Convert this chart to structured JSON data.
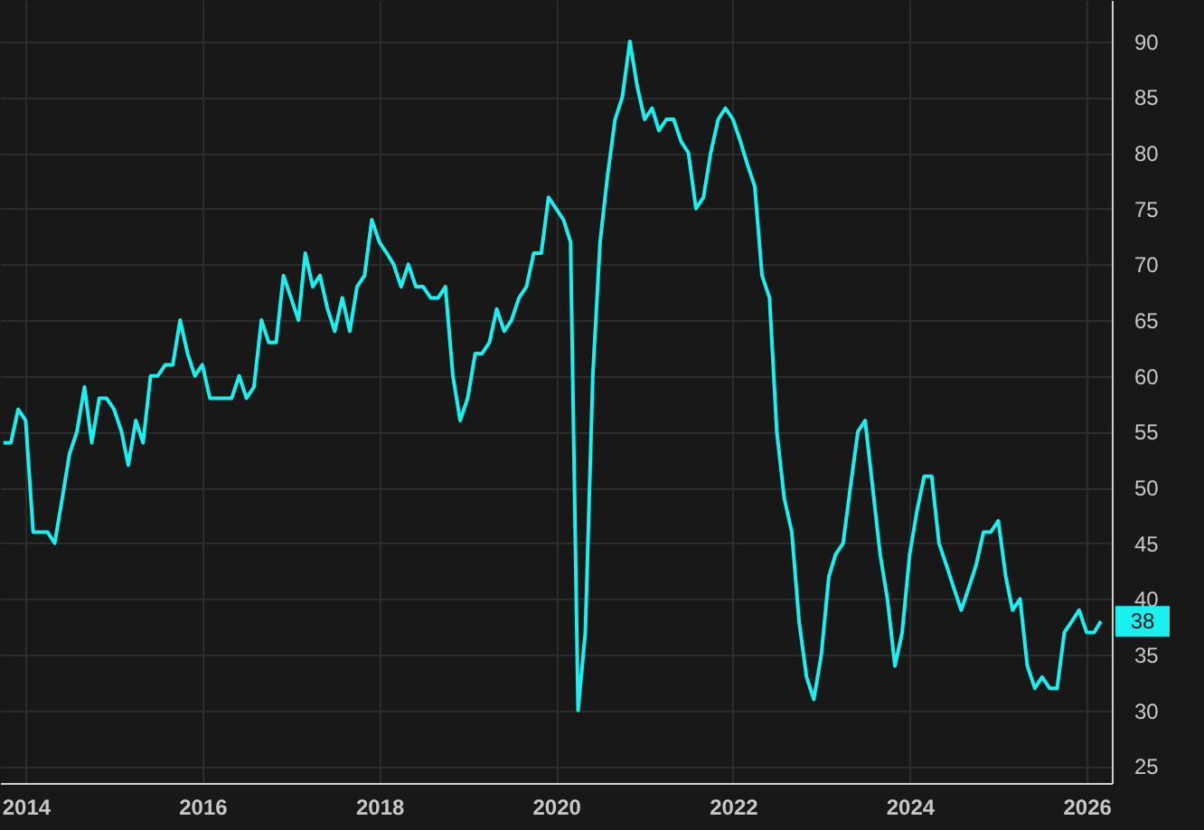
{
  "chart_data": {
    "type": "line",
    "x": [
      "2013-10",
      "2013-11",
      "2013-12",
      "2014-01",
      "2014-02",
      "2014-03",
      "2014-04",
      "2014-05",
      "2014-06",
      "2014-07",
      "2014-08",
      "2014-09",
      "2014-10",
      "2014-11",
      "2014-12",
      "2015-01",
      "2015-02",
      "2015-03",
      "2015-04",
      "2015-05",
      "2015-06",
      "2015-07",
      "2015-08",
      "2015-09",
      "2015-10",
      "2015-11",
      "2015-12",
      "2016-01",
      "2016-02",
      "2016-03",
      "2016-04",
      "2016-05",
      "2016-06",
      "2016-07",
      "2016-08",
      "2016-09",
      "2016-10",
      "2016-11",
      "2016-12",
      "2017-01",
      "2017-02",
      "2017-03",
      "2017-04",
      "2017-05",
      "2017-06",
      "2017-07",
      "2017-08",
      "2017-09",
      "2017-10",
      "2017-11",
      "2017-12",
      "2018-01",
      "2018-02",
      "2018-03",
      "2018-04",
      "2018-05",
      "2018-06",
      "2018-07",
      "2018-08",
      "2018-09",
      "2018-10",
      "2018-11",
      "2018-12",
      "2019-01",
      "2019-02",
      "2019-03",
      "2019-04",
      "2019-05",
      "2019-06",
      "2019-07",
      "2019-08",
      "2019-09",
      "2019-10",
      "2019-11",
      "2019-12",
      "2020-01",
      "2020-02",
      "2020-03",
      "2020-04",
      "2020-05",
      "2020-06",
      "2020-07",
      "2020-08",
      "2020-09",
      "2020-10",
      "2020-11",
      "2020-12",
      "2021-01",
      "2021-02",
      "2021-03",
      "2021-04",
      "2021-05",
      "2021-06",
      "2021-07",
      "2021-08",
      "2021-09",
      "2021-10",
      "2021-11",
      "2021-12",
      "2022-01",
      "2022-02",
      "2022-03",
      "2022-04",
      "2022-05",
      "2022-06",
      "2022-07",
      "2022-08",
      "2022-09",
      "2022-10",
      "2022-11",
      "2022-12",
      "2023-01",
      "2023-02",
      "2023-03",
      "2023-04",
      "2023-05",
      "2023-06",
      "2023-07",
      "2023-08",
      "2023-09",
      "2023-10",
      "2023-11",
      "2023-12",
      "2024-01",
      "2024-02",
      "2024-03",
      "2024-04",
      "2024-05",
      "2024-06",
      "2024-07",
      "2024-08",
      "2024-09",
      "2024-10",
      "2024-11",
      "2024-12",
      "2025-01",
      "2025-02",
      "2025-03",
      "2025-04",
      "2025-05",
      "2025-06",
      "2025-07",
      "2025-08",
      "2025-09",
      "2025-10",
      "2025-11",
      "2025-12",
      "2026-01",
      "2026-02",
      "2026-03"
    ],
    "series": [
      {
        "color": "#19f0f0",
        "values": [
          54,
          54,
          57,
          56,
          46,
          46,
          46,
          45,
          49,
          53,
          55,
          59,
          54,
          58,
          58,
          57,
          55,
          52,
          56,
          54,
          60,
          60,
          61,
          61,
          65,
          62,
          60,
          61,
          58,
          58,
          58,
          58,
          60,
          58,
          59,
          65,
          63,
          63,
          69,
          67,
          65,
          71,
          68,
          69,
          66,
          64,
          67,
          64,
          68,
          69,
          74,
          72,
          71,
          70,
          68,
          70,
          68,
          68,
          67,
          67,
          68,
          60,
          56,
          58,
          62,
          62,
          63,
          66,
          64,
          65,
          67,
          68,
          71,
          71,
          76,
          75,
          74,
          72,
          30,
          37,
          60,
          72,
          78,
          83,
          85,
          90,
          86,
          83,
          84,
          82,
          83,
          83,
          81,
          80,
          75,
          76,
          80,
          83,
          84,
          83,
          81,
          79,
          77,
          69,
          67,
          55,
          49,
          46,
          38,
          33,
          31,
          35,
          42,
          44,
          45,
          50,
          55,
          56,
          50,
          44,
          40,
          34,
          37,
          44,
          48,
          51,
          51,
          45,
          43,
          41,
          39,
          41,
          43,
          46,
          46,
          47,
          42,
          39,
          40,
          34,
          32,
          33,
          32,
          32,
          37,
          38,
          39,
          37,
          37,
          38
        ]
      }
    ],
    "xlim": [
      "2013-09-17",
      "2026-04-15"
    ],
    "xticks": [
      "2014",
      "2016",
      "2018",
      "2020",
      "2022",
      "2024",
      "2026"
    ],
    "ylim": [
      23.5,
      93.7
    ],
    "yticks": [
      25,
      30,
      35,
      40,
      45,
      50,
      55,
      60,
      65,
      70,
      75,
      80,
      85,
      90
    ],
    "grid": true,
    "line_style": "solid",
    "annotations": [
      "38"
    ]
  }
}
